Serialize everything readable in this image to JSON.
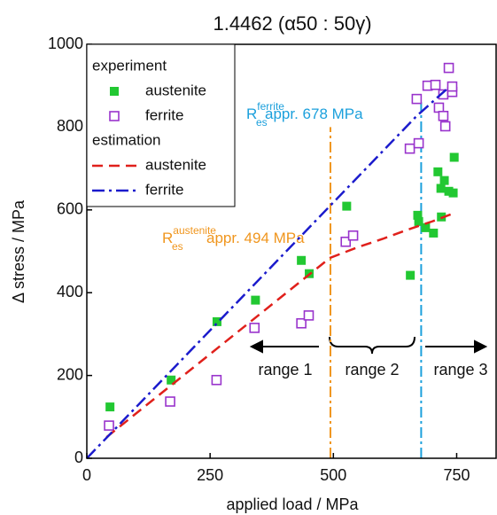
{
  "chart_data": {
    "type": "scatter",
    "title": "1.4462 (α50 : 50γ)",
    "x_label": "applied load / MPa",
    "y_label": "Δ stress / MPa",
    "xlim": [
      0,
      830
    ],
    "ylim": [
      0,
      1000
    ],
    "xticks": [
      0,
      250,
      500,
      750
    ],
    "yticks": [
      0,
      200,
      400,
      600,
      800,
      1000
    ],
    "groups": [
      {
        "title": "experiment",
        "series": [
          {
            "name": "austenite",
            "color": "#22c832",
            "marker": "filled-square",
            "x": [
              47,
              171,
              264,
              342,
              435,
              451,
              527,
              656,
              671,
              673,
              687,
              703,
              712,
              718,
              719,
              725,
              734,
              743,
              745
            ],
            "values": [
              124,
              189,
              330,
              382,
              478,
              446,
              609,
              442,
              587,
              572,
              557,
              544,
              692,
              652,
              583,
              671,
              645,
              641,
              727
            ]
          },
          {
            "name": "ferrite",
            "color": "#9933cc",
            "marker": "open-square",
            "x": [
              45,
              169,
              263,
              340,
              435,
              450,
              525,
              540,
              655,
              669,
              673,
              691,
              707,
              714,
              723,
              723,
              727,
              734,
              741,
              741
            ],
            "values": [
              79,
              137,
              189,
              315,
              326,
              345,
              523,
              538,
              748,
              868,
              761,
              900,
              902,
              847,
              879,
              827,
              802,
              943,
              885,
              898
            ]
          }
        ]
      },
      {
        "title": "estimation",
        "series": [
          {
            "name": "austenite",
            "color": "#e0201b",
            "dash": "12 7",
            "x": [
              40,
              493,
              550,
              600,
              650,
              700,
              740
            ],
            "values": [
              51,
              484,
              510,
              530,
              552,
              572,
              590
            ]
          },
          {
            "name": "ferrite",
            "color": "#1b1bcc",
            "dash": "14 5 3 5",
            "x": [
              0,
              669,
              732
            ],
            "values": [
              0,
              827,
              894
            ]
          }
        ]
      }
    ],
    "thresholds": [
      {
        "x": 494,
        "top": 800,
        "color": "#f0961e",
        "base": "R",
        "sub": "es",
        "sup": "austenite",
        "text": "appr. 494 MPa"
      },
      {
        "x": 678,
        "top": 860,
        "color": "#1ca0dc",
        "base": "R",
        "sub": "es",
        "sup": "ferrite",
        "text": "appr. 678 MPa"
      }
    ],
    "ranges": [
      "range 1",
      "range 2",
      "range 3"
    ]
  }
}
